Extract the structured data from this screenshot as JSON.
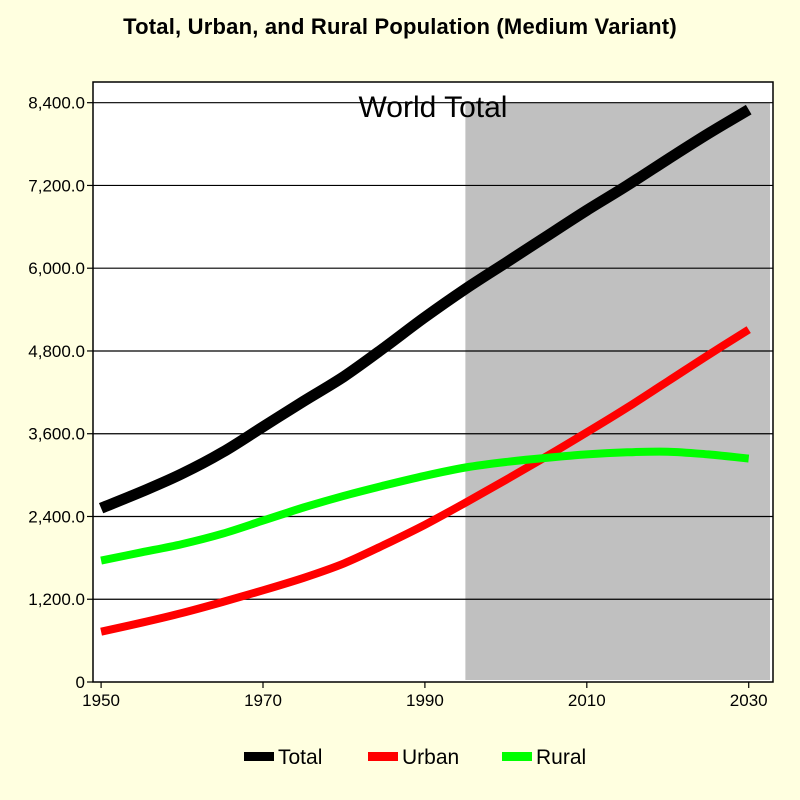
{
  "page_title": "Total, Urban, and Rural Population (Medium Variant)",
  "colors": {
    "background": "#ffffe0",
    "projection_shade": "#c0c0c0",
    "total": "#000000",
    "urban": "#ff0000",
    "rural": "#00ff00"
  },
  "chart_data": {
    "type": "line",
    "title": "World Total",
    "xlabel": "",
    "ylabel": "",
    "x": [
      1950,
      1955,
      1960,
      1965,
      1970,
      1975,
      1980,
      1985,
      1990,
      1995,
      2000,
      2005,
      2010,
      2015,
      2020,
      2025,
      2030
    ],
    "xlim": [
      1949,
      2033
    ],
    "ylim": [
      0,
      8700
    ],
    "x_ticks": [
      1950,
      1970,
      1990,
      2010,
      2030
    ],
    "x_tick_labels": [
      "1950",
      "1970",
      "1990",
      "2010",
      "2030"
    ],
    "y_ticks": [
      0,
      1200,
      2400,
      3600,
      4800,
      6000,
      7200,
      8400
    ],
    "y_tick_labels": [
      "0",
      "1,200.0",
      "2,400.0",
      "3,600.0",
      "4,800.0",
      "6,000.0",
      "7,200.0",
      "8,400.0"
    ],
    "grid": "horizontal",
    "projection_shaded_from": 1995,
    "legend_position": "bottom-center",
    "series": [
      {
        "name": "Total",
        "color": "#000000",
        "values": [
          2520,
          2760,
          3020,
          3330,
          3700,
          4070,
          4430,
          4850,
          5290,
          5700,
          6080,
          6460,
          6840,
          7200,
          7580,
          7950,
          8300
        ]
      },
      {
        "name": "Urban",
        "color": "#ff0000",
        "values": [
          730,
          860,
          1000,
          1160,
          1330,
          1510,
          1720,
          1990,
          2280,
          2600,
          2930,
          3270,
          3620,
          3980,
          4360,
          4740,
          5110
        ]
      },
      {
        "name": "Rural",
        "color": "#00ff00",
        "values": [
          1760,
          1880,
          2000,
          2150,
          2340,
          2530,
          2700,
          2850,
          2990,
          3110,
          3190,
          3250,
          3300,
          3330,
          3340,
          3300,
          3240
        ]
      }
    ]
  }
}
